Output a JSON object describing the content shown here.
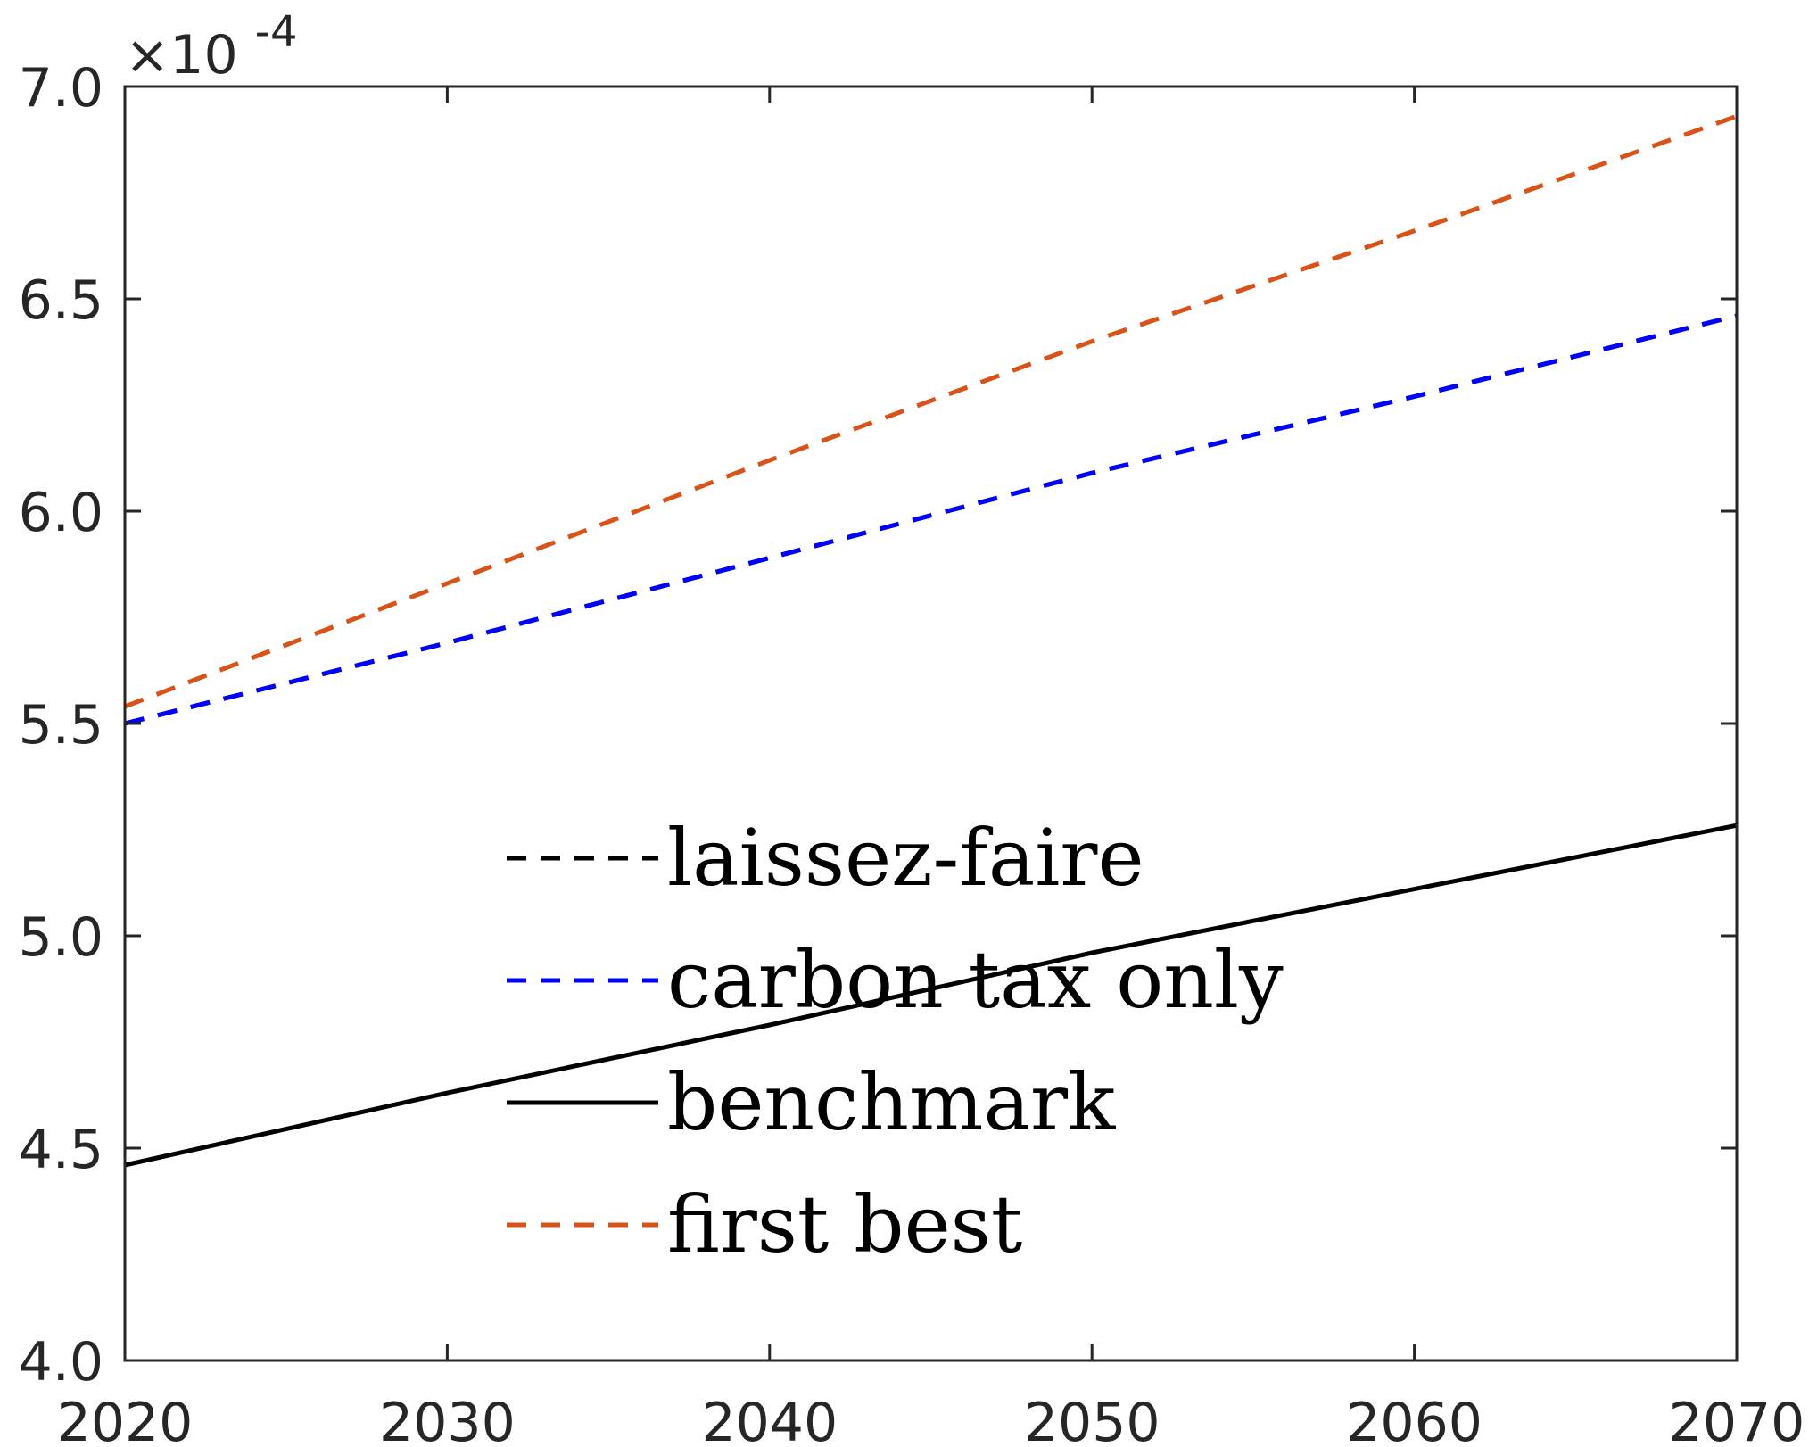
{
  "chart_data": {
    "type": "line",
    "title": "",
    "xlabel": "",
    "ylabel": "",
    "xlim": [
      2020,
      2070
    ],
    "ylim": [
      4.0,
      7.0
    ],
    "y_multiplier_label": {
      "base": "×10",
      "exponent": "-4"
    },
    "x_ticks": [
      "2020",
      "2030",
      "2040",
      "2050",
      "2060",
      "2070"
    ],
    "y_ticks": [
      "4.0",
      "4.5",
      "5.0",
      "5.5",
      "6.0",
      "6.5",
      "7.0"
    ],
    "grid": false,
    "legend_position": "center",
    "x": [
      2020,
      2030,
      2040,
      2050,
      2060,
      2070
    ],
    "series": [
      {
        "name": "laissez-faire",
        "color": "#000000",
        "style": "dashed",
        "values": [
          5.5,
          5.69,
          5.89,
          6.09,
          6.27,
          6.46
        ]
      },
      {
        "name": "carbon tax only",
        "color": "#0000ff",
        "style": "dashed",
        "values": [
          5.5,
          5.69,
          5.89,
          6.09,
          6.27,
          6.46
        ]
      },
      {
        "name": "benchmark",
        "color": "#000000",
        "style": "solid",
        "values": [
          4.46,
          4.63,
          4.79,
          4.96,
          5.11,
          5.26
        ]
      },
      {
        "name": "first best",
        "color": "#d95319",
        "style": "dashed",
        "values": [
          5.54,
          5.83,
          6.12,
          6.4,
          6.66,
          6.93
        ]
      }
    ]
  }
}
